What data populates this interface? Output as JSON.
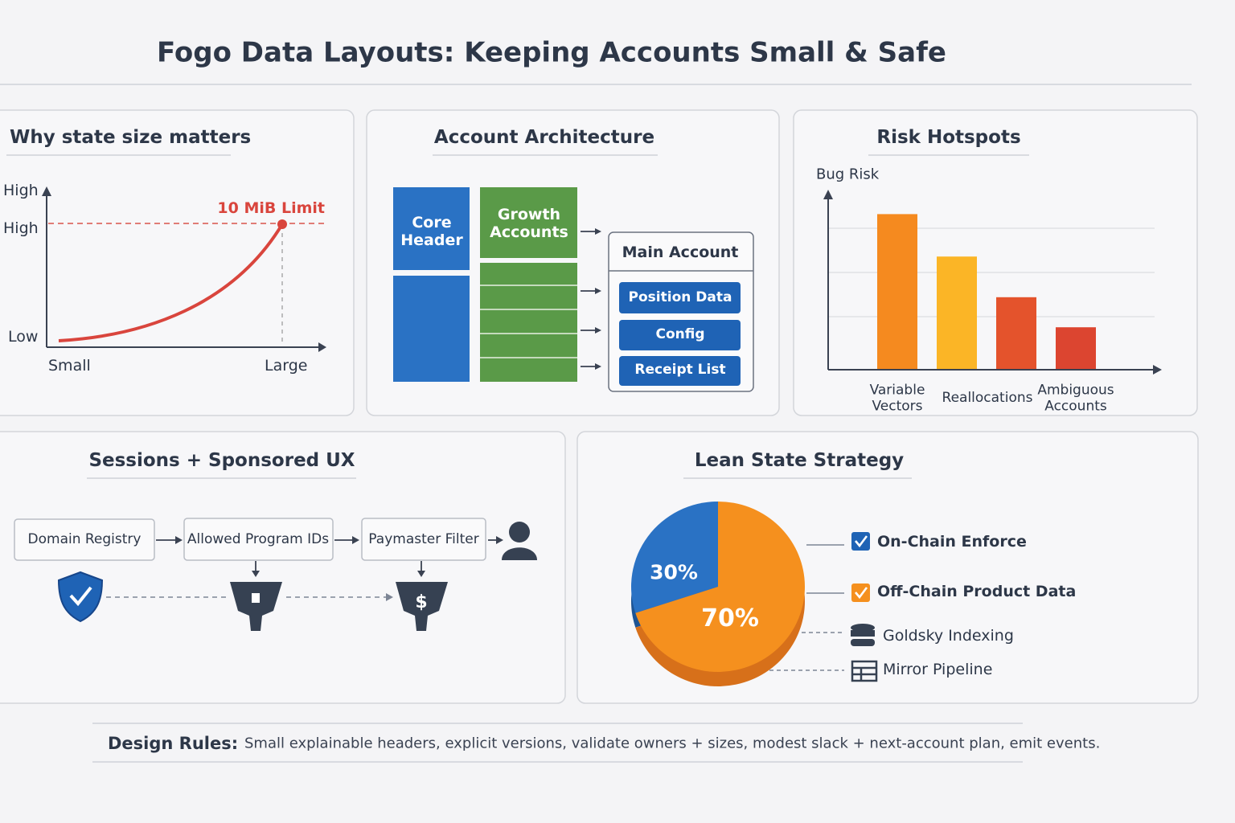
{
  "title": "Fogo Data Layouts: Keeping Accounts Small & Safe",
  "state_size": {
    "title": "Why state size matters",
    "y_top": "High",
    "y_mid": "High",
    "y_low": "Low",
    "x_left": "Small",
    "x_right": "Large",
    "annotation": "10 MiB Limit"
  },
  "architecture": {
    "title": "Account Architecture",
    "core": "Core Header",
    "growth": "Growth Accounts",
    "main": "Main Account",
    "items": [
      "Position Data",
      "Config",
      "Receipt List"
    ]
  },
  "risk": {
    "title": "Risk Hotspots",
    "chart_data": {
      "type": "bar",
      "y_label": "Bug Risk",
      "categories": [
        "Variable Vectors",
        "Reallocations",
        null,
        "Ambiguous Accounts"
      ],
      "values": [
        88,
        64,
        41,
        24
      ],
      "colors": [
        "#f58a1f",
        "#fbb526",
        "#e4532c",
        "#dc4530"
      ],
      "ylim": [
        0,
        100
      ]
    }
  },
  "sessions": {
    "title": "Sessions + Sponsored UX",
    "steps": [
      "Domain Registry",
      "Allowed Program IDs",
      "Paymaster Filter"
    ]
  },
  "lean": {
    "title": "Lean State Strategy",
    "chart_data": {
      "type": "pie",
      "values": [
        30,
        70
      ],
      "value_labels": [
        "30%",
        "70%"
      ],
      "colors": [
        "#2a72c4",
        "#f5901e"
      ]
    },
    "legend": [
      "On-Chain Enforce",
      "Off-Chain Product Data",
      "Goldsky Indexing",
      "Mirror Pipeline"
    ]
  },
  "footer": {
    "label": "Design Rules:",
    "text": "Small explainable headers, explicit versions, validate owners + sizes, modest slack + next-account plan, emit events."
  }
}
